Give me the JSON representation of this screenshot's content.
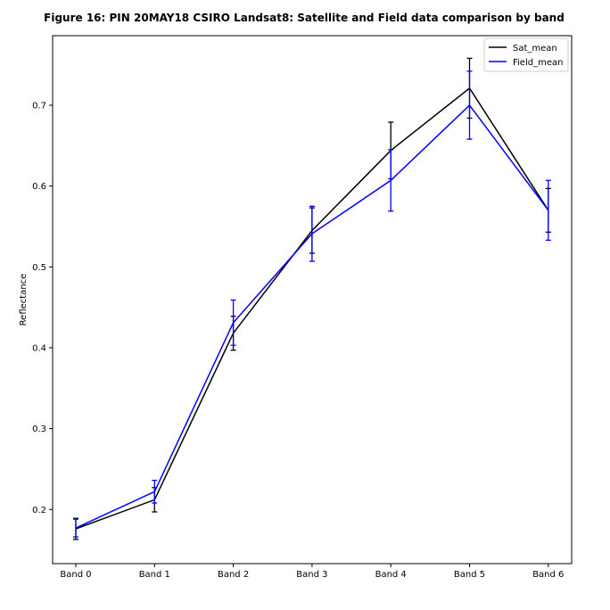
{
  "chart_data": {
    "type": "line",
    "title": "Figure 16: PIN 20MAY18 CSIRO Landsat8: Satellite and Field data comparison by band",
    "xlabel": "",
    "ylabel": "Reflectance",
    "categories": [
      "Band 0",
      "Band 1",
      "Band 2",
      "Band 3",
      "Band 4",
      "Band 5",
      "Band 6"
    ],
    "ylim": [
      0.133,
      0.786
    ],
    "yticks": [
      "0.2",
      "0.3",
      "0.4",
      "0.5",
      "0.6",
      "0.7"
    ],
    "grid": false,
    "legend_position": "top-right",
    "series": [
      {
        "name": "Sat_mean",
        "color": "#000000",
        "values": [
          0.176,
          0.212,
          0.418,
          0.545,
          0.644,
          0.721,
          0.57
        ],
        "errors": [
          0.013,
          0.015,
          0.021,
          0.028,
          0.035,
          0.037,
          0.027
        ]
      },
      {
        "name": "Field_mean",
        "color": "#0000ff",
        "values": [
          0.177,
          0.222,
          0.431,
          0.541,
          0.607,
          0.7,
          0.57
        ],
        "errors": [
          0.011,
          0.014,
          0.028,
          0.034,
          0.038,
          0.042,
          0.037
        ]
      }
    ]
  }
}
